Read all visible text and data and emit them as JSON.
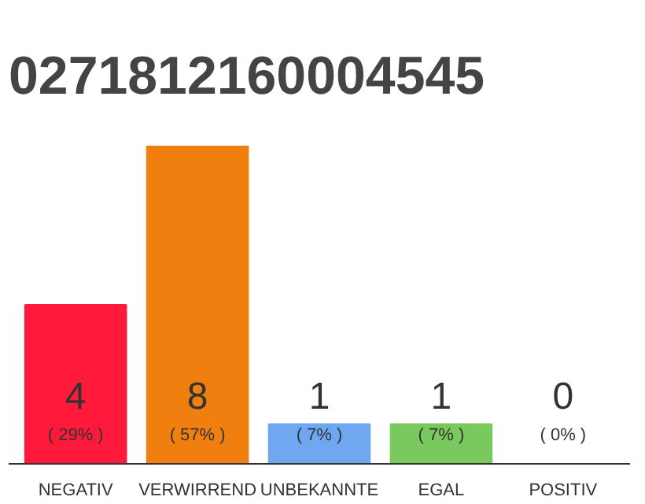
{
  "chart_data": {
    "type": "bar",
    "title": "0271812160004545",
    "categories": [
      "NEGATIV",
      "VERWIRREND",
      "UNBEKANNTE",
      "EGAL",
      "POSITIV"
    ],
    "values": [
      4,
      8,
      1,
      1,
      0
    ],
    "colors": [
      "#ff1a3c",
      "#f07f0f",
      "#6fa8f0",
      "#7ac95f",
      "#bbbbbb"
    ],
    "data_labels": true,
    "annotations": [
      "( 29% )",
      "( 57% )",
      "( 7% )",
      "( 7% )",
      "( 0% )"
    ],
    "grid": false
  }
}
